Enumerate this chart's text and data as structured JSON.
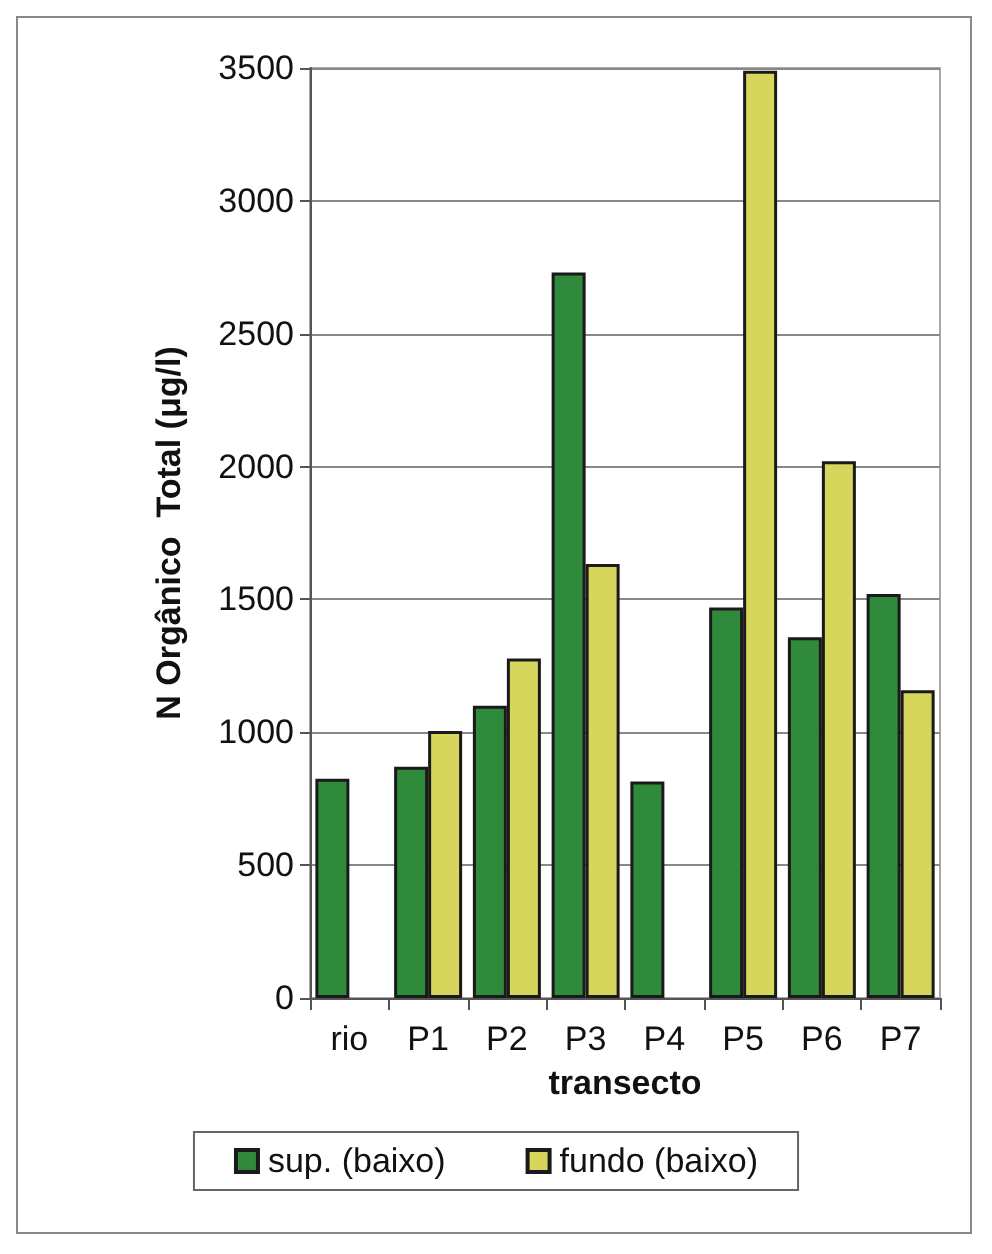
{
  "chart_data": {
    "type": "bar",
    "xlabel": "transecto",
    "ylabel": "N Orgânico  Total (μg/l)",
    "categories": [
      "rio",
      "P1",
      "P2",
      "P3",
      "P4",
      "P5",
      "P6",
      "P7"
    ],
    "series": [
      {
        "name": "sup. (baixo)",
        "color": "#2f8a3c",
        "values": [
          825,
          870,
          1100,
          2730,
          815,
          1470,
          1358,
          1520
        ]
      },
      {
        "name": "fundo (baixo)",
        "color": "#d6d65c",
        "values": [
          null,
          1005,
          1278,
          1633,
          null,
          3490,
          2020,
          1158
        ]
      }
    ],
    "ylim": [
      0,
      3500
    ],
    "yticks": [
      0,
      500,
      1000,
      1500,
      2000,
      2500,
      3000,
      3500
    ],
    "grid": "y",
    "legend": "bottom"
  }
}
